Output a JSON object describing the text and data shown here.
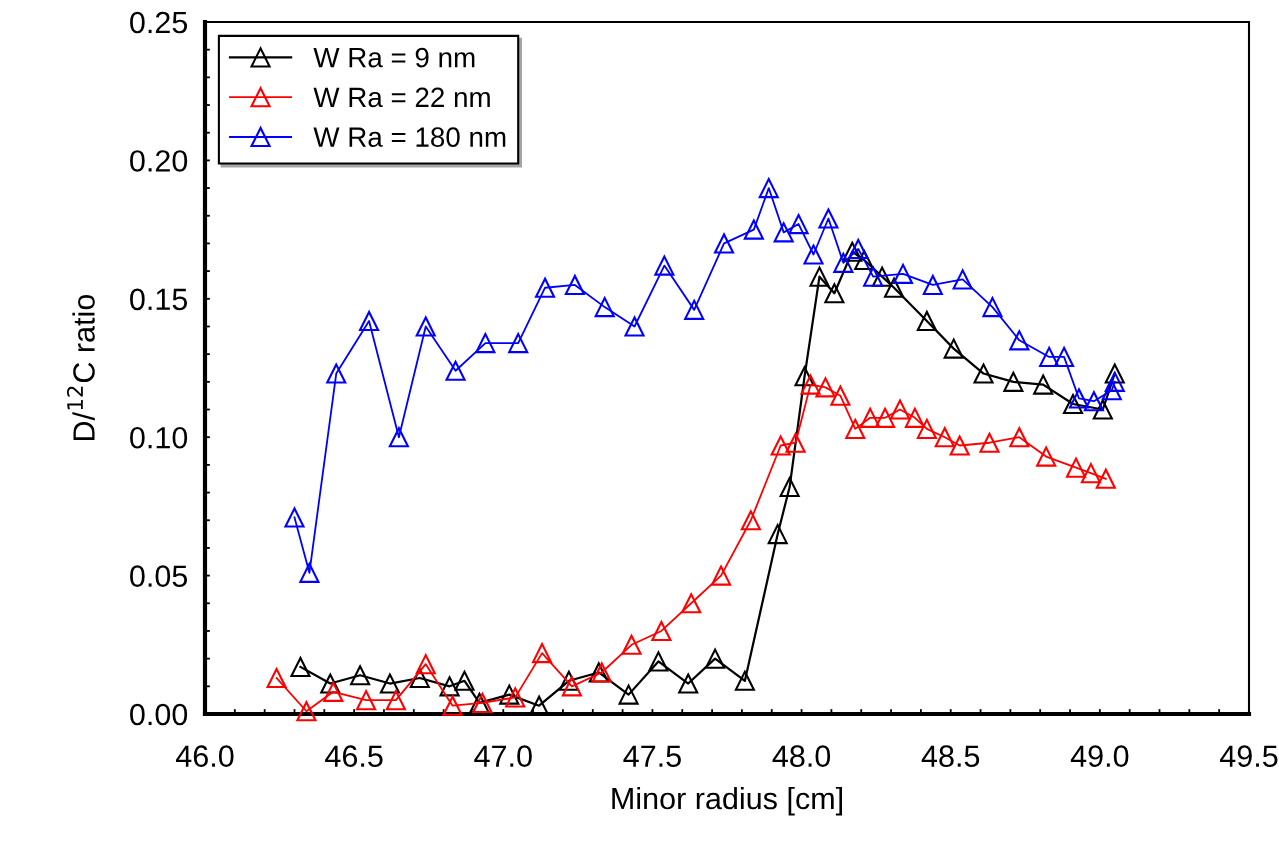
{
  "chart_data": {
    "type": "line",
    "xlabel": "Minor radius [cm]",
    "ylabel": "D/$^{12}$C ratio",
    "xlim": [
      46.0,
      49.5
    ],
    "xticks": [
      {
        "value": 46.0,
        "label": "46.0"
      },
      {
        "value": 46.1,
        "label": null
      },
      {
        "value": 46.2,
        "label": null
      },
      {
        "value": 46.3,
        "label": null
      },
      {
        "value": 46.4,
        "label": null
      },
      {
        "value": 46.5,
        "label": "46.5"
      },
      {
        "value": 46.6,
        "label": null
      },
      {
        "value": 46.7,
        "label": null
      },
      {
        "value": 46.8,
        "label": null
      },
      {
        "value": 46.9,
        "label": null
      },
      {
        "value": 47.0,
        "label": "47.0"
      },
      {
        "value": 47.1,
        "label": null
      },
      {
        "value": 47.2,
        "label": null
      },
      {
        "value": 47.3,
        "label": null
      },
      {
        "value": 47.4,
        "label": null
      },
      {
        "value": 47.5,
        "label": "47.5"
      },
      {
        "value": 47.6,
        "label": null
      },
      {
        "value": 47.7,
        "label": null
      },
      {
        "value": 47.8,
        "label": null
      },
      {
        "value": 47.9,
        "label": null
      },
      {
        "value": 48.0,
        "label": "48.0"
      },
      {
        "value": 48.1,
        "label": null
      },
      {
        "value": 48.2,
        "label": null
      },
      {
        "value": 48.3,
        "label": null
      },
      {
        "value": 48.4,
        "label": null
      },
      {
        "value": 48.5,
        "label": "48.5"
      },
      {
        "value": 48.6,
        "label": null
      },
      {
        "value": 48.7,
        "label": null
      },
      {
        "value": 48.8,
        "label": null
      },
      {
        "value": 48.9,
        "label": null
      },
      {
        "value": 49.0,
        "label": "49.0"
      },
      {
        "value": 49.1,
        "label": null
      },
      {
        "value": 49.2,
        "label": null
      },
      {
        "value": 49.3,
        "label": null
      },
      {
        "value": 49.4,
        "label": null
      },
      {
        "value": 49.5,
        "label": "49.5"
      }
    ],
    "ylim": [
      0,
      0.25
    ],
    "yticks": [
      {
        "value": 0,
        "label": "0.00"
      },
      {
        "value": 0.01,
        "label": null
      },
      {
        "value": 0.02,
        "label": null
      },
      {
        "value": 0.03,
        "label": null
      },
      {
        "value": 0.04,
        "label": null
      },
      {
        "value": 0.05,
        "label": "0.05"
      },
      {
        "value": 0.06,
        "label": null
      },
      {
        "value": 0.07,
        "label": null
      },
      {
        "value": 0.08,
        "label": null
      },
      {
        "value": 0.09,
        "label": null
      },
      {
        "value": 0.1,
        "label": "0.10"
      },
      {
        "value": 0.11,
        "label": null
      },
      {
        "value": 0.12,
        "label": null
      },
      {
        "value": 0.13,
        "label": null
      },
      {
        "value": 0.14,
        "label": null
      },
      {
        "value": 0.15,
        "label": "0.15"
      },
      {
        "value": 0.16,
        "label": null
      },
      {
        "value": 0.17,
        "label": null
      },
      {
        "value": 0.18,
        "label": null
      },
      {
        "value": 0.19,
        "label": null
      },
      {
        "value": 0.2,
        "label": "0.20"
      },
      {
        "value": 0.21,
        "label": null
      },
      {
        "value": 0.22,
        "label": null
      },
      {
        "value": 0.23,
        "label": null
      },
      {
        "value": 0.24,
        "label": null
      },
      {
        "value": 0.25,
        "label": "0.25"
      }
    ],
    "grid": false,
    "legend": "top left",
    "marker": "triangle",
    "line_style": "solid",
    "series": [
      {
        "name": "W Ra = 9 nm",
        "color": "#000000",
        "x": [
          46.32,
          46.42,
          46.52,
          46.62,
          46.72,
          46.82,
          46.87,
          46.92,
          47.02,
          47.12,
          47.22,
          47.32,
          47.42,
          47.52,
          47.62,
          47.71,
          47.81,
          47.92,
          47.96,
          48.01,
          48.06,
          48.11,
          48.17,
          48.21,
          48.27,
          48.31,
          48.42,
          48.51,
          48.61,
          48.71,
          48.81,
          48.91,
          49.01,
          49.05
        ],
        "values": [
          0.017,
          0.011,
          0.014,
          0.011,
          0.013,
          0.01,
          0.012,
          0.004,
          0.007,
          0.003,
          0.012,
          0.015,
          0.007,
          0.019,
          0.011,
          0.02,
          0.012,
          0.065,
          0.082,
          0.122,
          0.158,
          0.152,
          0.167,
          0.164,
          0.158,
          0.154,
          0.142,
          0.132,
          0.123,
          0.12,
          0.119,
          0.112,
          0.11,
          0.123
        ]
      },
      {
        "name": "W Ra = 22 nm",
        "color": "#ff0000",
        "x": [
          46.24,
          46.34,
          46.43,
          46.54,
          46.64,
          46.74,
          46.83,
          46.93,
          47.04,
          47.13,
          47.23,
          47.33,
          47.43,
          47.53,
          47.63,
          47.73,
          47.83,
          47.93,
          47.98,
          48.03,
          48.08,
          48.13,
          48.18,
          48.23,
          48.28,
          48.33,
          48.38,
          48.42,
          48.48,
          48.53,
          48.63,
          48.73,
          48.82,
          48.92,
          48.97,
          49.02
        ],
        "values": [
          0.013,
          0.001,
          0.008,
          0.005,
          0.005,
          0.018,
          0.003,
          0.004,
          0.006,
          0.022,
          0.01,
          0.015,
          0.025,
          0.03,
          0.04,
          0.05,
          0.07,
          0.097,
          0.098,
          0.119,
          0.118,
          0.115,
          0.103,
          0.107,
          0.107,
          0.11,
          0.107,
          0.103,
          0.1,
          0.097,
          0.098,
          0.1,
          0.093,
          0.089,
          0.087,
          0.085
        ]
      },
      {
        "name": "W Ra = 180 nm",
        "color": "#0000ff",
        "x": [
          46.3,
          46.35,
          46.44,
          46.55,
          46.65,
          46.74,
          46.84,
          46.94,
          47.05,
          47.14,
          47.24,
          47.34,
          47.44,
          47.54,
          47.64,
          47.74,
          47.84,
          47.89,
          47.94,
          47.99,
          48.04,
          48.09,
          48.14,
          48.19,
          48.24,
          48.34,
          48.44,
          48.54,
          48.64,
          48.73,
          48.83,
          48.88,
          48.93,
          48.98,
          49.04,
          49.05
        ],
        "values": [
          0.071,
          0.051,
          0.123,
          0.142,
          0.1,
          0.14,
          0.124,
          0.134,
          0.134,
          0.154,
          0.155,
          0.147,
          0.14,
          0.162,
          0.146,
          0.17,
          0.175,
          0.19,
          0.174,
          0.177,
          0.166,
          0.179,
          0.163,
          0.168,
          0.158,
          0.159,
          0.155,
          0.157,
          0.147,
          0.135,
          0.129,
          0.129,
          0.114,
          0.113,
          0.117,
          0.12
        ]
      }
    ]
  }
}
